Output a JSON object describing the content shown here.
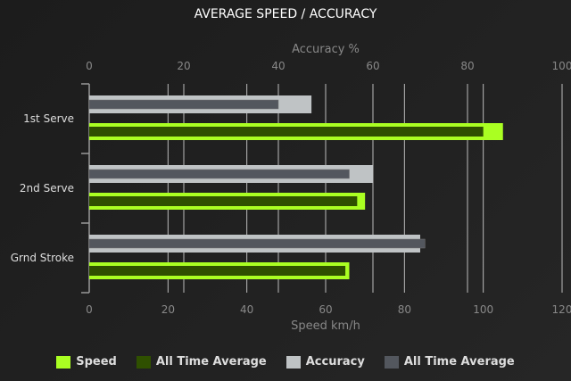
{
  "chart_data": {
    "type": "bar",
    "orientation": "horizontal",
    "title": "AVERAGE SPEED / ACCURACY",
    "categories": [
      "1st Serve",
      "2nd Serve",
      "Grnd Stroke"
    ],
    "x_bottom": {
      "label": "Speed km/h",
      "range": [
        0,
        120
      ],
      "ticks": [
        0,
        20,
        40,
        60,
        80,
        100,
        120
      ]
    },
    "x_top": {
      "label": "Accuracy %",
      "range": [
        0,
        100
      ],
      "ticks": [
        0,
        20,
        40,
        60,
        80,
        100
      ]
    },
    "grid": true,
    "legend_position": "bottom",
    "series": [
      {
        "name": "Speed",
        "axis": "bottom",
        "color": "#aaff22",
        "values": [
          105,
          70,
          66
        ]
      },
      {
        "name": "All Time Average",
        "axis": "bottom",
        "color": "#2f5000",
        "values": [
          100,
          68,
          65
        ]
      },
      {
        "name": "Accuracy",
        "axis": "top",
        "color": "#bfc3c5",
        "values": [
          47,
          60,
          70
        ]
      },
      {
        "name": "All Time Average",
        "axis": "top",
        "color": "#53575e",
        "values": [
          40,
          55,
          71
        ]
      }
    ]
  }
}
